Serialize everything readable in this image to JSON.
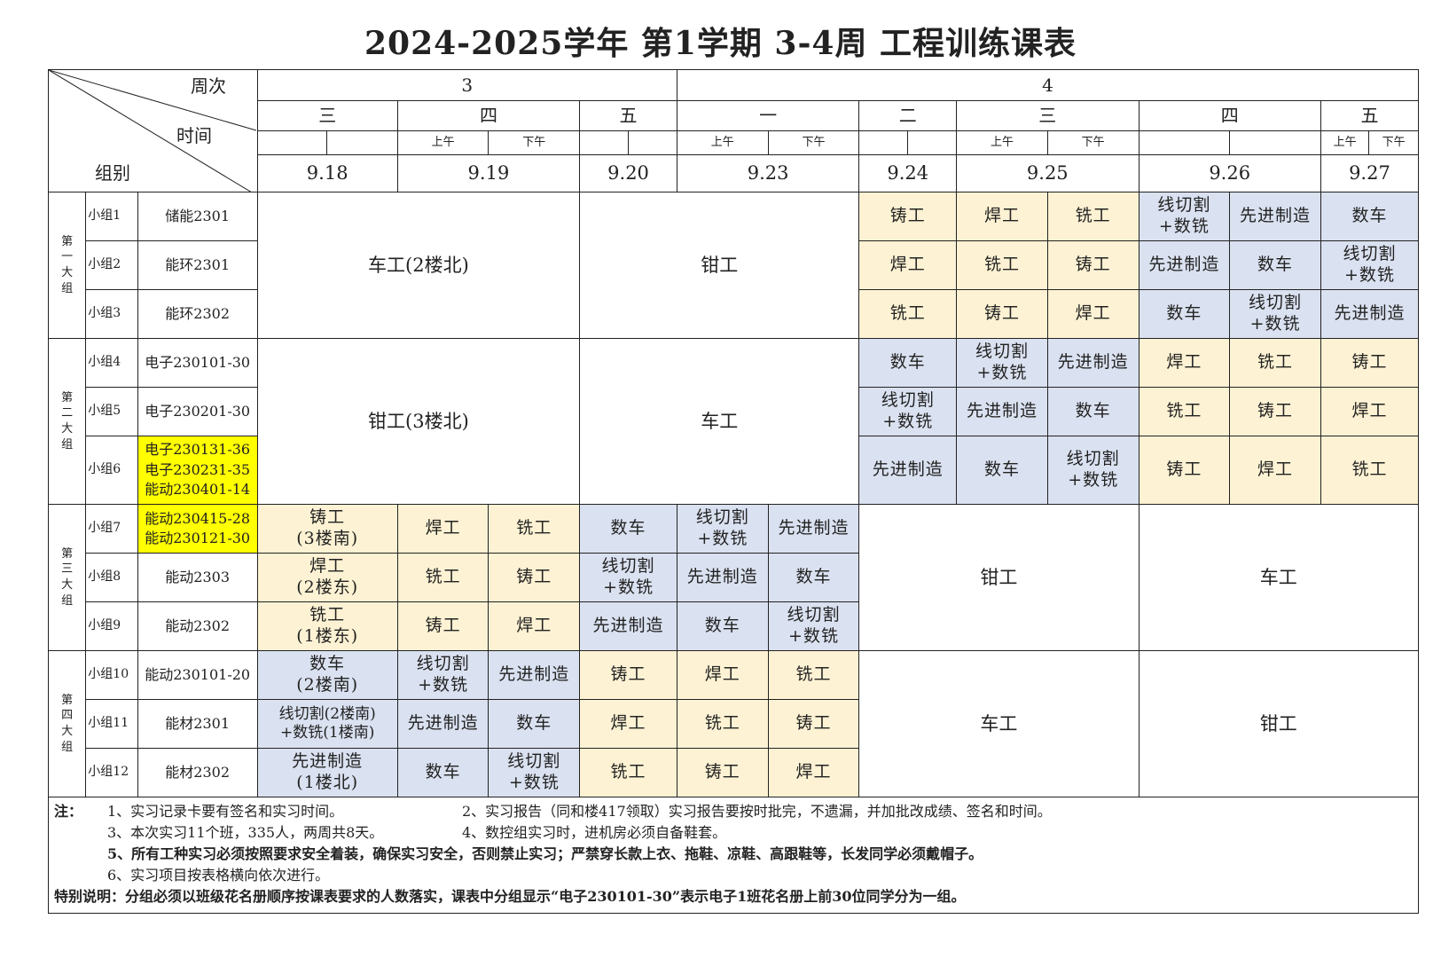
{
  "title": "2024-2025学年 第1学期 3-4周 工程训练课表",
  "corner": {
    "week": "周次",
    "time": "时间",
    "group": "组别"
  },
  "weeks": [
    "3",
    "4"
  ],
  "days": [
    "三",
    "四",
    "五",
    "一",
    "二",
    "三",
    "四",
    "五"
  ],
  "ampm": {
    "am": "上午",
    "pm": "下午"
  },
  "dates": [
    "9.18",
    "9.19",
    "9.20",
    "9.23",
    "9.24",
    "9.25",
    "9.26",
    "9.27"
  ],
  "big_groups": [
    "第一大组",
    "第二大组",
    "第三大组",
    "第四大组"
  ],
  "subgroups": [
    {
      "name": "小组1",
      "cls": "储能2301"
    },
    {
      "name": "小组2",
      "cls": "能环2301"
    },
    {
      "name": "小组3",
      "cls": "能环2302"
    },
    {
      "name": "小组4",
      "cls": "电子230101-30"
    },
    {
      "name": "小组5",
      "cls": "电子230201-30"
    },
    {
      "name": "小组6",
      "cls": "电子230131-36\n电子230231-35\n能动230401-14"
    },
    {
      "name": "小组7",
      "cls": "能动230415-28\n能动230121-30"
    },
    {
      "name": "小组8",
      "cls": "能动2303"
    },
    {
      "name": "小组9",
      "cls": "能动2302"
    },
    {
      "name": "小组10",
      "cls": "能动230101-20"
    },
    {
      "name": "小组11",
      "cls": "能材2301"
    },
    {
      "name": "小组12",
      "cls": "能材2302"
    }
  ],
  "merged": {
    "g1_a": "车工(2楼北)",
    "g1_b": "钳工",
    "g2_a": "钳工(3楼北)",
    "g2_b": "车工",
    "g3_a": "钳工",
    "g3_b": "车工",
    "g4_a": "车工",
    "g4_b": "钳工"
  },
  "rows": {
    "r1": [
      "铸工",
      "焊工",
      "铣工",
      "线切割\n+数铣",
      "先进制造",
      "数车"
    ],
    "r2": [
      "焊工",
      "铣工",
      "铸工",
      "先进制造",
      "数车",
      "线切割\n+数铣"
    ],
    "r3": [
      "铣工",
      "铸工",
      "焊工",
      "数车",
      "线切割\n+数铣",
      "先进制造"
    ],
    "r4": [
      "数车",
      "线切割\n+数铣",
      "先进制造",
      "焊工",
      "铣工",
      "铸工"
    ],
    "r5": [
      "线切割\n+数铣",
      "先进制造",
      "数车",
      "铣工",
      "铸工",
      "焊工"
    ],
    "r6": [
      "先进制造",
      "数车",
      "线切割\n+数铣",
      "铸工",
      "焊工",
      "铣工"
    ],
    "r7": [
      "铸工\n(3楼南)",
      "焊工",
      "铣工",
      "数车",
      "线切割\n+数铣",
      "先进制造"
    ],
    "r8": [
      "焊工\n(2楼东)",
      "铣工",
      "铸工",
      "线切割\n+数铣",
      "先进制造",
      "数车"
    ],
    "r9": [
      "铣工\n(1楼东)",
      "铸工",
      "焊工",
      "先进制造",
      "数车",
      "线切割\n+数铣"
    ],
    "r10": [
      "数车\n(2楼南)",
      "线切割\n+数铣",
      "先进制造",
      "铸工",
      "焊工",
      "铣工"
    ],
    "r11": [
      "线切割(2楼南)\n+数铣(1楼南)",
      "先进制造",
      "数车",
      "焊工",
      "铣工",
      "铸工"
    ],
    "r12": [
      "先进制造\n(1楼北)",
      "数车",
      "线切割\n+数铣",
      "铣工",
      "铸工",
      "焊工"
    ]
  },
  "notes": {
    "label": "注：",
    "n1": "1、实习记录卡要有签名和实习时间。",
    "n2": "2、实习报告（同和楼417领取）实习报告要按时批完，不遗漏，并加批改成绩、签名和时间。",
    "n3": "3、本次实习11个班，335人，两周共8天。",
    "n4": "4、数控组实习时，进机房必须自备鞋套。",
    "n5": "5、所有工种实习必须按照要求安全着装，确保实习安全，否则禁止实习；严禁穿长款上衣、拖鞋、凉鞋、高跟鞋等，长发同学必须戴帽子。",
    "n6": "6、实习项目按表格横向依次进行。",
    "special": "特别说明：分组必须以班级花名册顺序按课表要求的人数落实，课表中分组显示“电子230101-30”表示电子1班花名册上前30位同学分为一组。"
  },
  "colors": {
    "orange": "#fdf2d3",
    "blue": "#dae1f0",
    "yellow": "#ffff00"
  }
}
